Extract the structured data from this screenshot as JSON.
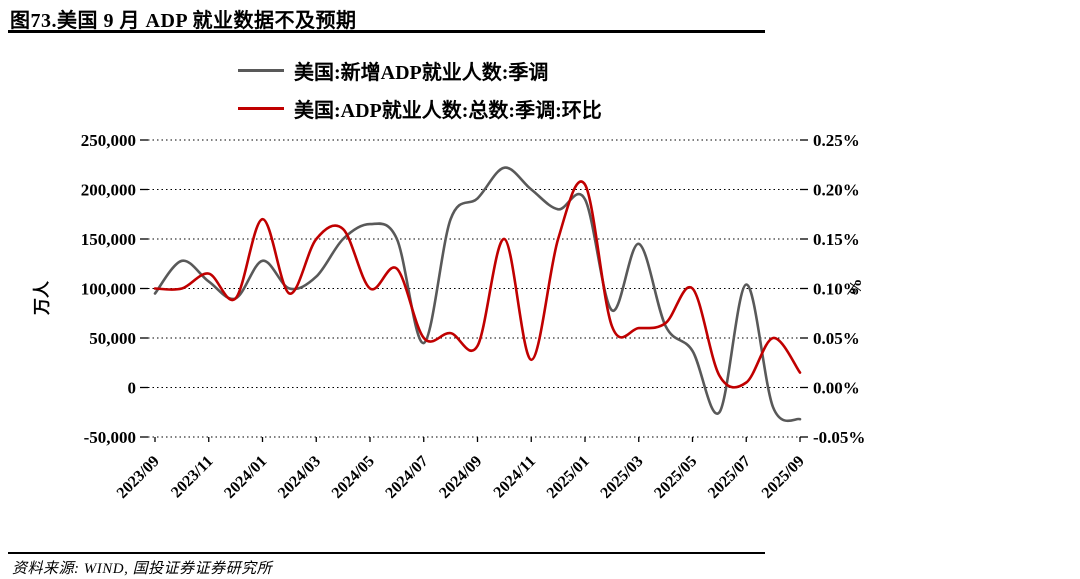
{
  "figure": {
    "title": "图73.美国 9 月 ADP 就业数据不及预期",
    "source": "资料来源: WIND, 国投证券证券研究所"
  },
  "chart_data": {
    "type": "line",
    "title": "图73.美国 9 月 ADP 就业数据不及预期",
    "legend_position": "top",
    "grid": "horizontal-dotted",
    "x": [
      "2023/09",
      "2023/10",
      "2023/11",
      "2023/12",
      "2024/01",
      "2024/02",
      "2024/03",
      "2024/04",
      "2024/05",
      "2024/06",
      "2024/07",
      "2024/08",
      "2024/09",
      "2024/10",
      "2024/11",
      "2024/12",
      "2025/01",
      "2025/02",
      "2025/03",
      "2025/04",
      "2025/05",
      "2025/06",
      "2025/07",
      "2025/08",
      "2025/09"
    ],
    "x_tick_labels": [
      "2023/09",
      "2023/11",
      "2024/01",
      "2024/03",
      "2024/05",
      "2024/07",
      "2024/09",
      "2024/11",
      "2025/01",
      "2025/03",
      "2025/05",
      "2025/07",
      "2025/09"
    ],
    "series": [
      {
        "name": "美国:新增ADP就业人数:季调",
        "axis": "left",
        "color": "#595959",
        "values": [
          95000,
          128000,
          107000,
          90000,
          128000,
          100000,
          112000,
          150000,
          165000,
          150000,
          45000,
          170000,
          191000,
          222000,
          200000,
          180000,
          190000,
          78000,
          145000,
          62000,
          37000,
          -25000,
          104000,
          -20000,
          -32000
        ]
      },
      {
        "name": "美国:ADP就业人数:总数:季调:环比",
        "axis": "right",
        "color": "#C00000",
        "values": [
          0.1,
          0.1,
          0.115,
          0.09,
          0.17,
          0.095,
          0.15,
          0.16,
          0.1,
          0.12,
          0.05,
          0.055,
          0.042,
          0.15,
          0.028,
          0.15,
          0.205,
          0.062,
          0.06,
          0.065,
          0.1,
          0.012,
          0.005,
          0.05,
          0.015
        ]
      }
    ],
    "left_axis": {
      "label": "万人",
      "min": -50000,
      "max": 250000,
      "ticks": [
        "250,000",
        "200,000",
        "150,000",
        "100,000",
        "50,000",
        "0",
        "-50,000"
      ]
    },
    "right_axis": {
      "label": "%",
      "min": -0.05,
      "max": 0.25,
      "ticks": [
        "0.25%",
        "0.20%",
        "0.15%",
        "0.10%",
        "0.05%",
        "0.00%",
        "-0.05%"
      ]
    }
  }
}
